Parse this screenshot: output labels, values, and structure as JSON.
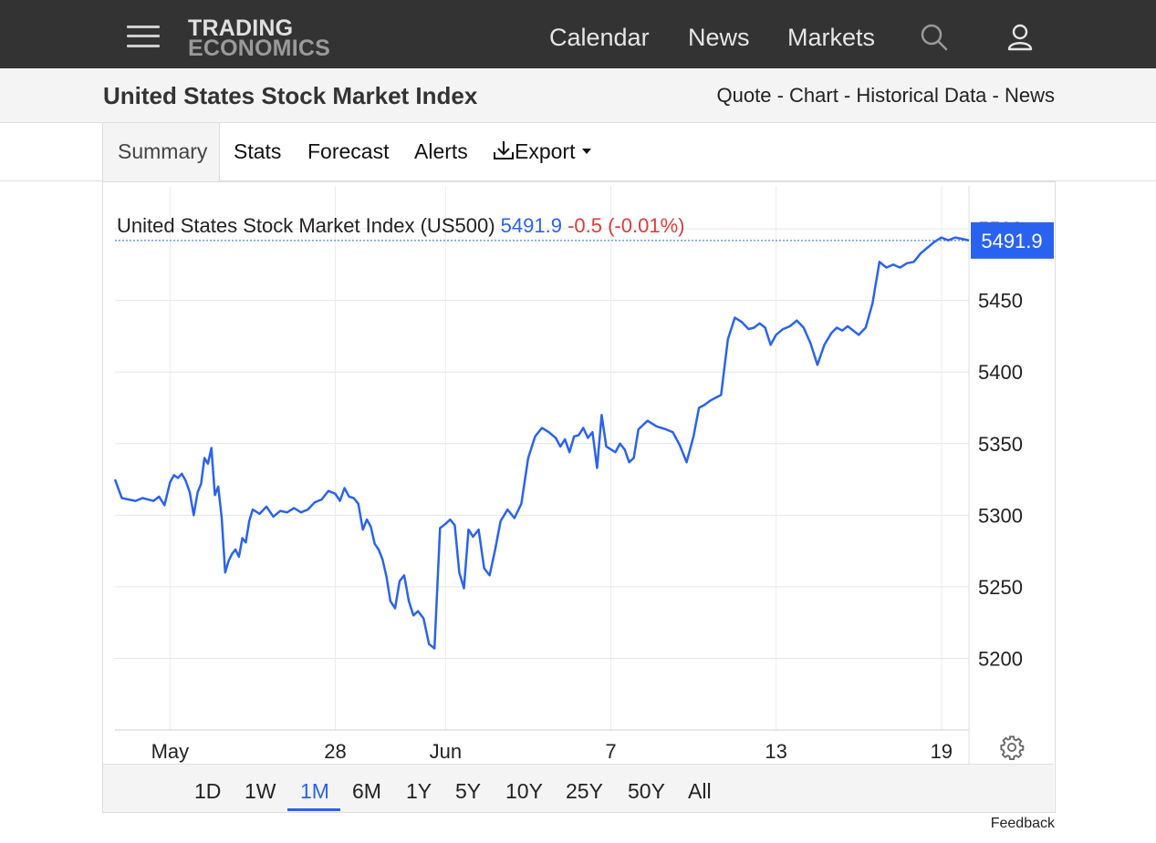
{
  "header": {
    "logo_line1": "TRADING",
    "logo_line2": "ECONOMICS",
    "nav": [
      "Calendar",
      "News",
      "Markets"
    ]
  },
  "title_bar": {
    "title": "United States Stock Market Index",
    "links": [
      "Quote",
      "Chart",
      "Historical Data",
      "News"
    ],
    "separator": " - "
  },
  "tabs": {
    "summary": "Summary",
    "stats": "Stats",
    "forecast": "Forecast",
    "alerts": "Alerts",
    "export": "Export"
  },
  "chart": {
    "legend_name": "United States Stock Market Index (US500)",
    "legend_last": "5491.9",
    "legend_change": "-0.5 (-0.01%)",
    "last_badge": "5491.9",
    "colors": {
      "line": "#2a62f0",
      "negative": "#e03a3a",
      "badge_bg": "#2a62f0"
    }
  },
  "chart_data": {
    "type": "line",
    "title": "United States Stock Market Index (US500)",
    "ylim": [
      5150,
      5530
    ],
    "yticks": [
      5200,
      5250,
      5300,
      5350,
      5400,
      5450,
      5500
    ],
    "xlim": [
      "2024-05-20",
      "2024-06-20"
    ],
    "xticks": [
      {
        "label": "May",
        "date": "2024-05-22"
      },
      {
        "label": "28",
        "date": "2024-05-28"
      },
      {
        "label": "Jun",
        "date": "2024-06-01"
      },
      {
        "label": "7",
        "date": "2024-06-07"
      },
      {
        "label": "13",
        "date": "2024-06-13"
      },
      {
        "label": "19",
        "date": "2024-06-19"
      }
    ],
    "grid": true,
    "last_value": 5491.9,
    "series": [
      {
        "values": [
          [
            "2024-05-20",
            5325
          ],
          [
            "2024-05-20",
            5312
          ],
          [
            "2024-05-20",
            5311
          ],
          [
            "2024-05-20",
            5310
          ],
          [
            "2024-05-21",
            5312
          ],
          [
            "2024-05-21",
            5311
          ],
          [
            "2024-05-21",
            5310
          ],
          [
            "2024-05-21",
            5313
          ],
          [
            "2024-05-21",
            5307
          ],
          [
            "2024-05-22",
            5323
          ],
          [
            "2024-05-22",
            5328
          ],
          [
            "2024-05-22",
            5326
          ],
          [
            "2024-05-22",
            5329
          ],
          [
            "2024-05-22",
            5324
          ],
          [
            "2024-05-22",
            5316
          ],
          [
            "2024-05-22",
            5300
          ],
          [
            "2024-05-23",
            5316
          ],
          [
            "2024-05-23",
            5322
          ],
          [
            "2024-05-23",
            5340
          ],
          [
            "2024-05-23",
            5336
          ],
          [
            "2024-05-23",
            5347
          ],
          [
            "2024-05-23",
            5314
          ],
          [
            "2024-05-23",
            5320
          ],
          [
            "2024-05-23",
            5298
          ],
          [
            "2024-05-24",
            5260
          ],
          [
            "2024-05-24",
            5268
          ],
          [
            "2024-05-24",
            5273
          ],
          [
            "2024-05-24",
            5276
          ],
          [
            "2024-05-24",
            5271
          ],
          [
            "2024-05-24",
            5284
          ],
          [
            "2024-05-24",
            5281
          ],
          [
            "2024-05-24",
            5296
          ],
          [
            "2024-05-25",
            5304
          ],
          [
            "2024-05-25",
            5301
          ],
          [
            "2024-05-25",
            5306
          ],
          [
            "2024-05-25",
            5299
          ],
          [
            "2024-05-26",
            5303
          ],
          [
            "2024-05-26",
            5302
          ],
          [
            "2024-05-26",
            5305
          ],
          [
            "2024-05-26",
            5302
          ],
          [
            "2024-05-27",
            5304
          ],
          [
            "2024-05-27",
            5309
          ],
          [
            "2024-05-27",
            5311
          ],
          [
            "2024-05-27",
            5317
          ],
          [
            "2024-05-28",
            5315
          ],
          [
            "2024-05-28",
            5310
          ],
          [
            "2024-05-28",
            5319
          ],
          [
            "2024-05-28",
            5313
          ],
          [
            "2024-05-28",
            5312
          ],
          [
            "2024-05-28",
            5308
          ],
          [
            "2024-05-29",
            5290
          ],
          [
            "2024-05-29",
            5297
          ],
          [
            "2024-05-29",
            5292
          ],
          [
            "2024-05-29",
            5280
          ],
          [
            "2024-05-29",
            5276
          ],
          [
            "2024-05-29",
            5269
          ],
          [
            "2024-05-29",
            5257
          ],
          [
            "2024-05-30",
            5240
          ],
          [
            "2024-05-30",
            5235
          ],
          [
            "2024-05-30",
            5254
          ],
          [
            "2024-05-30",
            5258
          ],
          [
            "2024-05-30",
            5240
          ],
          [
            "2024-05-30",
            5230
          ],
          [
            "2024-05-31",
            5233
          ],
          [
            "2024-05-31",
            5228
          ],
          [
            "2024-05-31",
            5210
          ],
          [
            "2024-05-31",
            5207
          ],
          [
            "2024-05-31",
            5291
          ],
          [
            "2024-06-01",
            5294
          ],
          [
            "2024-06-01",
            5297
          ],
          [
            "2024-06-01",
            5293
          ],
          [
            "2024-06-01",
            5260
          ],
          [
            "2024-06-01",
            5249
          ],
          [
            "2024-06-01",
            5290
          ],
          [
            "2024-06-02",
            5285
          ],
          [
            "2024-06-02",
            5290
          ],
          [
            "2024-06-02",
            5263
          ],
          [
            "2024-06-02",
            5258
          ],
          [
            "2024-06-02",
            5276
          ],
          [
            "2024-06-03",
            5296
          ],
          [
            "2024-06-03",
            5304
          ],
          [
            "2024-06-03",
            5298
          ],
          [
            "2024-06-03",
            5308
          ],
          [
            "2024-06-04",
            5340
          ],
          [
            "2024-06-04",
            5355
          ],
          [
            "2024-06-04",
            5361
          ],
          [
            "2024-06-04",
            5358
          ],
          [
            "2024-06-05",
            5354
          ],
          [
            "2024-06-05",
            5348
          ],
          [
            "2024-06-05",
            5353
          ],
          [
            "2024-06-05",
            5344
          ],
          [
            "2024-06-05",
            5355
          ],
          [
            "2024-06-05",
            5356
          ],
          [
            "2024-06-06",
            5361
          ],
          [
            "2024-06-06",
            5354
          ],
          [
            "2024-06-06",
            5358
          ],
          [
            "2024-06-06",
            5333
          ],
          [
            "2024-06-06",
            5370
          ],
          [
            "2024-06-06",
            5348
          ],
          [
            "2024-06-07",
            5346
          ],
          [
            "2024-06-07",
            5344
          ],
          [
            "2024-06-07",
            5350
          ],
          [
            "2024-06-07",
            5346
          ],
          [
            "2024-06-07",
            5337
          ],
          [
            "2024-06-07",
            5340
          ],
          [
            "2024-06-08",
            5360
          ],
          [
            "2024-06-08",
            5366
          ],
          [
            "2024-06-08",
            5362
          ],
          [
            "2024-06-09",
            5360
          ],
          [
            "2024-06-09",
            5358
          ],
          [
            "2024-06-09",
            5349
          ],
          [
            "2024-06-09",
            5337
          ],
          [
            "2024-06-10",
            5355
          ],
          [
            "2024-06-10",
            5375
          ],
          [
            "2024-06-10",
            5377
          ],
          [
            "2024-06-10",
            5380
          ],
          [
            "2024-06-10",
            5382
          ],
          [
            "2024-06-11",
            5384
          ],
          [
            "2024-06-11",
            5423
          ],
          [
            "2024-06-11",
            5438
          ],
          [
            "2024-06-11",
            5435
          ],
          [
            "2024-06-12",
            5430
          ],
          [
            "2024-06-12",
            5431
          ],
          [
            "2024-06-12",
            5434
          ],
          [
            "2024-06-12",
            5431
          ],
          [
            "2024-06-12",
            5419
          ],
          [
            "2024-06-13",
            5426
          ],
          [
            "2024-06-13",
            5430
          ],
          [
            "2024-06-13",
            5432
          ],
          [
            "2024-06-13",
            5436
          ],
          [
            "2024-06-14",
            5431
          ],
          [
            "2024-06-14",
            5420
          ],
          [
            "2024-06-14",
            5405
          ],
          [
            "2024-06-14",
            5419
          ],
          [
            "2024-06-15",
            5427
          ],
          [
            "2024-06-15",
            5431
          ],
          [
            "2024-06-15",
            5429
          ],
          [
            "2024-06-15",
            5432
          ],
          [
            "2024-06-15",
            5429
          ],
          [
            "2024-06-16",
            5426
          ],
          [
            "2024-06-16",
            5431
          ],
          [
            "2024-06-16",
            5448
          ],
          [
            "2024-06-16",
            5477
          ],
          [
            "2024-06-17",
            5473
          ],
          [
            "2024-06-17",
            5475
          ],
          [
            "2024-06-17",
            5473
          ],
          [
            "2024-06-17",
            5476
          ],
          [
            "2024-06-18",
            5477
          ],
          [
            "2024-06-18",
            5483
          ],
          [
            "2024-06-18",
            5487
          ],
          [
            "2024-06-18",
            5491
          ],
          [
            "2024-06-19",
            5494
          ],
          [
            "2024-06-19",
            5492
          ],
          [
            "2024-06-19",
            5494
          ],
          [
            "2024-06-19",
            5493
          ],
          [
            "2024-06-20",
            5491.9
          ]
        ]
      }
    ]
  },
  "range_buttons": [
    "1D",
    "1W",
    "1M",
    "6M",
    "1Y",
    "5Y",
    "10Y",
    "25Y",
    "50Y",
    "All"
  ],
  "range_active": "1M",
  "footer": {
    "feedback": "Feedback"
  }
}
